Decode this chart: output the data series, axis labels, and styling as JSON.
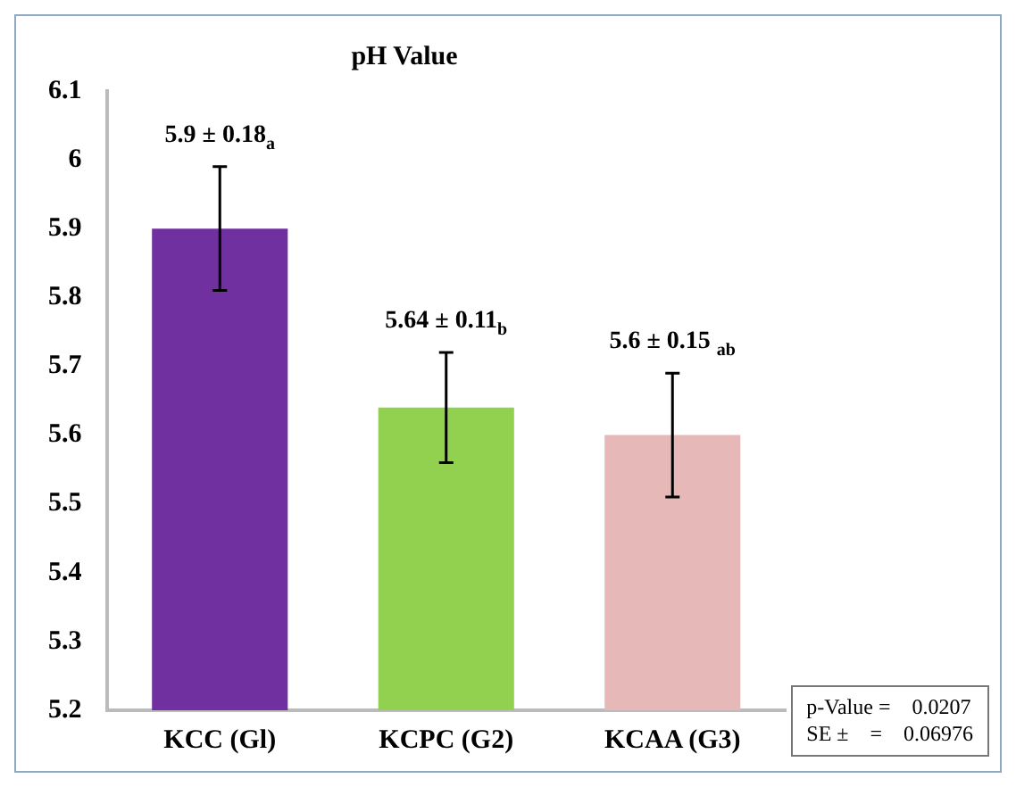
{
  "chart_data": {
    "type": "bar",
    "title": "pH Value",
    "categories": [
      "KCC (Gl)",
      "KCPC (G2)",
      "KCAA (G3)"
    ],
    "values": [
      5.9,
      5.64,
      5.6
    ],
    "colors": [
      "#7030a0",
      "#92d050",
      "#e6b9b8"
    ],
    "errors": [
      0.09,
      0.08,
      0.09
    ],
    "value_labels": [
      "5.9 ± 0.18$_{a}$",
      "5.64 ± 0.11$_{b}$",
      "5.6 ± 0.15 $_{ab}$"
    ],
    "ylim": [
      5.2,
      6.1
    ],
    "yticks": [
      5.2,
      5.3,
      5.4,
      5.5,
      5.6,
      5.7,
      5.8,
      5.9,
      {
        "value": 6,
        "label": "6"
      },
      6.1
    ],
    "grid": false,
    "legend": false,
    "annotations": [
      "p-Value =    0.0207",
      "SE ±    =    0.06976"
    ]
  }
}
